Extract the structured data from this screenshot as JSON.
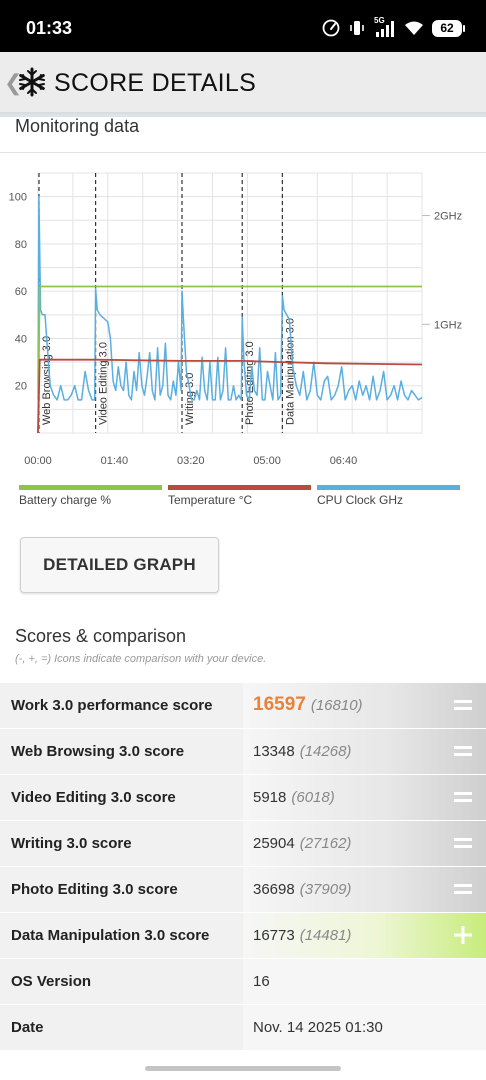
{
  "status_bar": {
    "time": "01:33",
    "network": "5G",
    "battery": "62",
    "icons": [
      "speedometer-icon",
      "vibrate-icon",
      "signal-icon",
      "wifi-icon",
      "battery-icon"
    ]
  },
  "header": {
    "title": "SCORE DETAILS",
    "back_icon": "chevron-left-icon",
    "logo_icon": "snowflake-icon"
  },
  "monitoring": {
    "title": "Monitoring data"
  },
  "chart_data": {
    "type": "line",
    "xlabel": "",
    "ylabel": "",
    "x_ticks": [
      "00:00",
      "01:40",
      "03:20",
      "05:00",
      "06:40"
    ],
    "y_ticks": [
      20,
      40,
      60,
      80,
      100
    ],
    "y_right_ticks": [
      "1GHz",
      "2GHz"
    ],
    "xlim": [
      0,
      440
    ],
    "ylim": [
      0,
      110
    ],
    "grid": true,
    "markers": [
      {
        "label": "Web Browsing 3.0",
        "x": 0
      },
      {
        "label": "Video Editing 3.0",
        "x": 66
      },
      {
        "label": "Writing 3.0",
        "x": 165
      },
      {
        "label": "Photo Editing 3.0",
        "x": 234
      },
      {
        "label": "Data Manipulation 3.0",
        "x": 280
      }
    ],
    "legend": [
      "Battery charge %",
      "Temperature °C",
      "CPU Clock GHz"
    ],
    "series": [
      {
        "name": "Battery charge %",
        "color": "#8fc449",
        "x": [
          0,
          2,
          440
        ],
        "values": [
          0,
          62,
          62
        ]
      },
      {
        "name": "Temperature °C",
        "color": "#b84a40",
        "x": [
          0,
          2,
          66,
          165,
          234,
          280,
          330,
          440
        ],
        "values": [
          0,
          31,
          31,
          30.5,
          30.5,
          30,
          29.5,
          29
        ]
      },
      {
        "name": "CPU Clock GHz",
        "color": "#5aaee0",
        "x": [
          0,
          1,
          3,
          5,
          8,
          10,
          14,
          18,
          22,
          26,
          30,
          34,
          38,
          42,
          46,
          50,
          54,
          58,
          62,
          65,
          66,
          68,
          71,
          74,
          77,
          80,
          83,
          86,
          89,
          92,
          95,
          98,
          101,
          104,
          107,
          110,
          113,
          116,
          119,
          122,
          125,
          128,
          131,
          134,
          137,
          140,
          143,
          146,
          149,
          152,
          155,
          158,
          161,
          164,
          165,
          167,
          170,
          173,
          176,
          179,
          182,
          185,
          188,
          191,
          194,
          197,
          200,
          203,
          206,
          209,
          212,
          215,
          218,
          221,
          224,
          227,
          230,
          233,
          234,
          236,
          239,
          242,
          245,
          248,
          251,
          254,
          257,
          260,
          263,
          266,
          269,
          272,
          275,
          278,
          280,
          282,
          285,
          288,
          292,
          296,
          300,
          304,
          308,
          312,
          316,
          320,
          324,
          328,
          332,
          336,
          340,
          344,
          348,
          352,
          356,
          360,
          364,
          368,
          372,
          376,
          380,
          384,
          388,
          392,
          396,
          400,
          404,
          408,
          412,
          416,
          420,
          424,
          428,
          432,
          436,
          440
        ],
        "values": [
          14,
          100,
          52,
          50,
          50,
          40,
          20,
          16,
          14,
          20,
          14,
          14,
          16,
          20,
          14,
          14,
          26,
          18,
          14,
          14,
          61,
          52,
          50,
          49,
          48,
          47,
          40,
          22,
          18,
          28,
          20,
          18,
          30,
          16,
          14,
          26,
          18,
          34,
          20,
          16,
          24,
          34,
          18,
          14,
          36,
          16,
          20,
          38,
          16,
          14,
          22,
          16,
          30,
          18,
          60,
          46,
          26,
          20,
          14,
          14,
          18,
          14,
          32,
          18,
          14,
          30,
          14,
          14,
          32,
          14,
          18,
          36,
          14,
          14,
          20,
          14,
          16,
          14,
          49,
          30,
          16,
          14,
          28,
          18,
          16,
          36,
          14,
          14,
          26,
          20,
          14,
          34,
          14,
          16,
          58,
          52,
          50,
          48,
          28,
          20,
          16,
          26,
          14,
          18,
          30,
          16,
          14,
          22,
          24,
          14,
          16,
          20,
          28,
          14,
          18,
          20,
          14,
          22,
          16,
          20,
          14,
          24,
          14,
          18,
          26,
          14,
          16,
          20,
          14,
          22,
          16,
          14,
          18,
          16,
          14,
          15
        ]
      }
    ]
  },
  "detailed_graph": {
    "label": "DETAILED GRAPH"
  },
  "scores": {
    "title": "Scores & comparison",
    "note": "(-, +, =) Icons indicate comparison with your device.",
    "rows": [
      {
        "label": "Work 3.0 performance score",
        "value": "16597",
        "compare": "(16810)",
        "icon": "equal-icon"
      },
      {
        "label": "Web Browsing 3.0 score",
        "value": "13348",
        "compare": "(14268)",
        "icon": "equal-icon"
      },
      {
        "label": "Video Editing 3.0 score",
        "value": "5918",
        "compare": "(6018)",
        "icon": "equal-icon"
      },
      {
        "label": "Writing 3.0 score",
        "value": "25904",
        "compare": "(27162)",
        "icon": "equal-icon"
      },
      {
        "label": "Photo Editing 3.0 score",
        "value": "36698",
        "compare": "(37909)",
        "icon": "equal-icon"
      },
      {
        "label": "Data Manipulation 3.0 score",
        "value": "16773",
        "compare": "(14481)",
        "icon": "plus-icon"
      },
      {
        "label": "OS Version",
        "value": "16"
      },
      {
        "label": "Date",
        "value": "Nov. 14 2025 01:30"
      }
    ]
  }
}
